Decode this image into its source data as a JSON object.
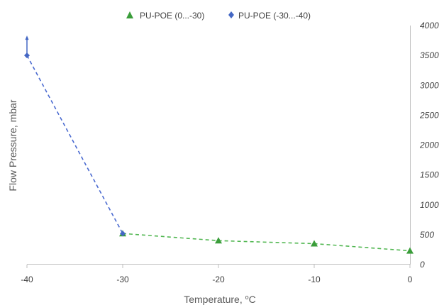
{
  "chart_data": {
    "type": "line",
    "xlabel": "Temperature, ",
    "xlabel_unit": "oC",
    "ylabel": "Flow Pressure, mbar",
    "xlim": [
      -40,
      0
    ],
    "ylim": [
      0,
      4000
    ],
    "x_ticks": [
      "-40",
      "-30",
      "-20",
      "-10",
      "0"
    ],
    "y_ticks": [
      "0",
      "500",
      "1000",
      "1500",
      "2000",
      "2500",
      "3000",
      "3500",
      "4000"
    ],
    "legend_position": "top",
    "series": [
      {
        "name": "PU-POE (0...-30)",
        "marker": "triangle",
        "color": "#3a9d3a",
        "line_color": "#52b752",
        "x": [
          -30,
          -20,
          -10,
          0
        ],
        "y": [
          520,
          400,
          350,
          230
        ]
      },
      {
        "name": "PU-POE (-30...-40)",
        "marker": "diamond",
        "color": "#4467c4",
        "line_color": "#4a6ad0",
        "x": [
          -40,
          -30
        ],
        "y": [
          3500,
          520
        ],
        "arrow_at": -40
      }
    ]
  }
}
